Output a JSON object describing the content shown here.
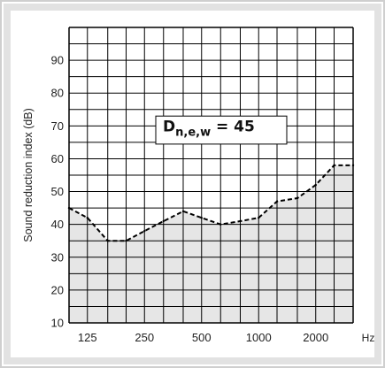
{
  "chart_data": {
    "type": "area",
    "ylabel": "Sound reduction index (dB)",
    "x_unit": "Hz",
    "y_ticks": [
      10,
      20,
      30,
      40,
      50,
      60,
      70,
      80,
      90
    ],
    "x_tick_labels": [
      "125",
      "250",
      "500",
      "1000",
      "2000"
    ],
    "x_tick_freqs": [
      125,
      250,
      500,
      1000,
      2000
    ],
    "ylim": [
      10,
      100
    ],
    "freq_range": [
      100,
      3150
    ],
    "grid": true,
    "annotation": {
      "symbol": "D",
      "subscript": "n,e,w",
      "relation": " = 45"
    },
    "series": [
      {
        "x": [
          100,
          125,
          160,
          200,
          250,
          315,
          400,
          500,
          630,
          800,
          1000,
          1250,
          1600,
          2000,
          2500,
          3150
        ],
        "values": [
          45,
          42,
          35,
          35,
          38,
          41,
          44,
          42,
          40,
          41,
          42,
          47,
          48,
          52,
          58,
          58
        ]
      }
    ],
    "colors": {
      "fill": "#e6e6e6",
      "grid": "#000000",
      "curve": "#000000",
      "frame": "#cfcfcf"
    }
  }
}
